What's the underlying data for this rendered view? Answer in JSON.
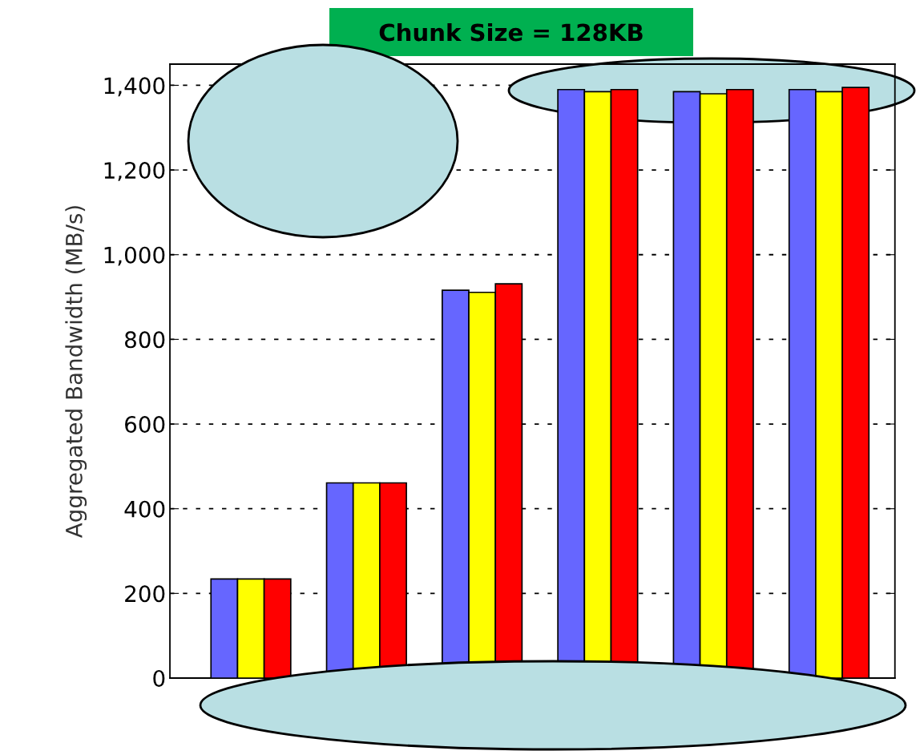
{
  "chart_data": {
    "type": "bar",
    "title": "Chunk Size = 128KB",
    "ylabel": "Aggregated Bandwidth (MB/s)",
    "categories": [
      null,
      null,
      null,
      null,
      null,
      null
    ],
    "series": [
      {
        "color": "#6666ff",
        "values": [
          234,
          461,
          916,
          1390,
          1385,
          1390
        ]
      },
      {
        "color": "#ffff00",
        "values": [
          234,
          461,
          911,
          1385,
          1380,
          1385
        ]
      },
      {
        "color": "#ff0000",
        "values": [
          234,
          461,
          931,
          1390,
          1390,
          1395
        ]
      }
    ],
    "ylim": [
      0,
      1450
    ],
    "yticks": [
      0,
      200,
      400,
      600,
      800,
      {
        "value": 1000,
        "label": "1,000"
      },
      {
        "value": 1200,
        "label": "1,200"
      },
      {
        "value": 1400,
        "label": "1,400"
      }
    ],
    "grid": "y",
    "legend": false
  }
}
